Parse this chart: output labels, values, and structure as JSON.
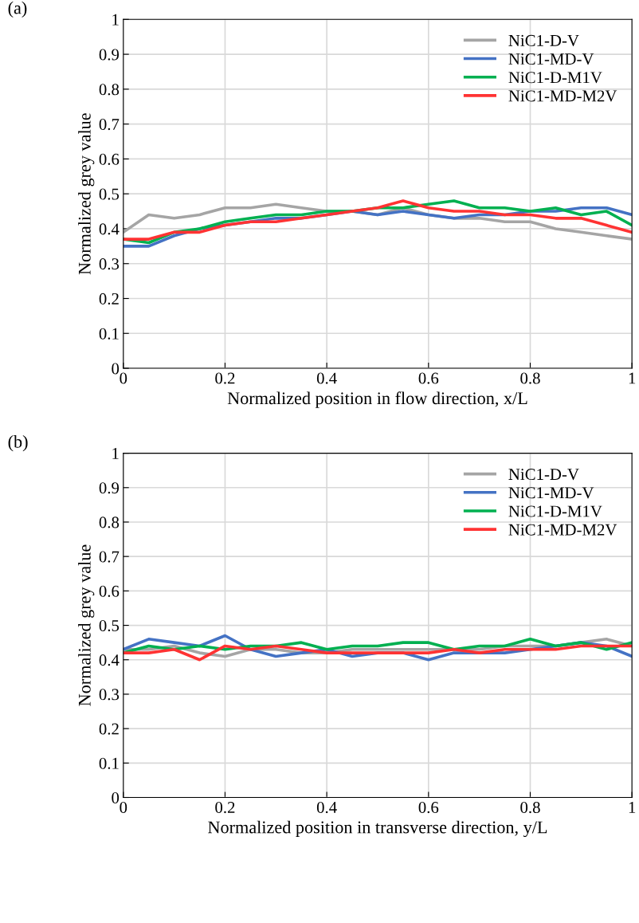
{
  "chart_data": [
    {
      "type": "line",
      "annotations": [
        "(a)"
      ],
      "xlabel": "Normalized position in flow direction, x/L",
      "ylabel": "Normalized grey value",
      "xlim": [
        0,
        1
      ],
      "ylim": [
        0,
        1
      ],
      "xticks": [
        0,
        0.2,
        0.4,
        0.6,
        0.8,
        1
      ],
      "yticks": [
        0,
        0.1,
        0.2,
        0.3,
        0.4,
        0.5,
        0.6,
        0.7,
        0.8,
        0.9,
        1
      ],
      "grid": true,
      "legend": "top right",
      "x": [
        0,
        0.05,
        0.1,
        0.15,
        0.2,
        0.25,
        0.3,
        0.35,
        0.4,
        0.45,
        0.5,
        0.55,
        0.6,
        0.65,
        0.7,
        0.75,
        0.8,
        0.85,
        0.9,
        0.95,
        1
      ],
      "series": [
        {
          "name": "NiC1-D-V",
          "color": "#a5a5a5",
          "values": [
            0.39,
            0.44,
            0.43,
            0.44,
            0.46,
            0.46,
            0.47,
            0.46,
            0.45,
            0.45,
            0.44,
            0.46,
            0.44,
            0.43,
            0.43,
            0.42,
            0.42,
            0.4,
            0.39,
            0.38,
            0.37
          ]
        },
        {
          "name": "NiC1-MD-V",
          "color": "#4472c4",
          "values": [
            0.35,
            0.35,
            0.38,
            0.4,
            0.41,
            0.42,
            0.43,
            0.43,
            0.44,
            0.45,
            0.44,
            0.45,
            0.44,
            0.43,
            0.44,
            0.44,
            0.45,
            0.45,
            0.46,
            0.46,
            0.44
          ]
        },
        {
          "name": "NiC1-D-M1V",
          "color": "#00b050",
          "values": [
            0.37,
            0.36,
            0.39,
            0.4,
            0.42,
            0.43,
            0.44,
            0.44,
            0.45,
            0.45,
            0.46,
            0.46,
            0.47,
            0.48,
            0.46,
            0.46,
            0.45,
            0.46,
            0.44,
            0.45,
            0.41
          ]
        },
        {
          "name": "NiC1-MD-M2V",
          "color": "#ff3333",
          "values": [
            0.37,
            0.37,
            0.39,
            0.39,
            0.41,
            0.42,
            0.42,
            0.43,
            0.44,
            0.45,
            0.46,
            0.48,
            0.46,
            0.45,
            0.45,
            0.44,
            0.44,
            0.43,
            0.43,
            0.41,
            0.39
          ]
        }
      ]
    },
    {
      "type": "line",
      "annotations": [
        "(b)"
      ],
      "xlabel": "Normalized position in transverse direction, y/L",
      "ylabel": "Normalized grey value",
      "xlim": [
        0,
        1
      ],
      "ylim": [
        0,
        1
      ],
      "xticks": [
        0,
        0.2,
        0.4,
        0.6,
        0.8,
        1
      ],
      "yticks": [
        0,
        0.1,
        0.2,
        0.3,
        0.4,
        0.5,
        0.6,
        0.7,
        0.8,
        0.9,
        1
      ],
      "grid": true,
      "legend": "top right",
      "x": [
        0,
        0.05,
        0.1,
        0.15,
        0.2,
        0.25,
        0.3,
        0.35,
        0.4,
        0.45,
        0.5,
        0.55,
        0.6,
        0.65,
        0.7,
        0.75,
        0.8,
        0.85,
        0.9,
        0.95,
        1
      ],
      "series": [
        {
          "name": "NiC1-D-V",
          "color": "#a5a5a5",
          "values": [
            0.43,
            0.43,
            0.44,
            0.42,
            0.41,
            0.43,
            0.43,
            0.42,
            0.42,
            0.43,
            0.43,
            0.43,
            0.43,
            0.43,
            0.43,
            0.44,
            0.44,
            0.44,
            0.45,
            0.46,
            0.44
          ]
        },
        {
          "name": "NiC1-MD-V",
          "color": "#4472c4",
          "values": [
            0.43,
            0.46,
            0.45,
            0.44,
            0.47,
            0.43,
            0.41,
            0.42,
            0.43,
            0.41,
            0.42,
            0.42,
            0.4,
            0.42,
            0.42,
            0.42,
            0.43,
            0.44,
            0.45,
            0.44,
            0.41
          ]
        },
        {
          "name": "NiC1-D-M1V",
          "color": "#00b050",
          "values": [
            0.42,
            0.44,
            0.43,
            0.44,
            0.43,
            0.44,
            0.44,
            0.45,
            0.43,
            0.44,
            0.44,
            0.45,
            0.45,
            0.43,
            0.44,
            0.44,
            0.46,
            0.44,
            0.45,
            0.43,
            0.45
          ]
        },
        {
          "name": "NiC1-MD-M2V",
          "color": "#ff3333",
          "values": [
            0.42,
            0.42,
            0.43,
            0.4,
            0.44,
            0.43,
            0.44,
            0.43,
            0.42,
            0.42,
            0.42,
            0.42,
            0.42,
            0.43,
            0.42,
            0.43,
            0.43,
            0.43,
            0.44,
            0.44,
            0.44
          ]
        }
      ]
    }
  ]
}
